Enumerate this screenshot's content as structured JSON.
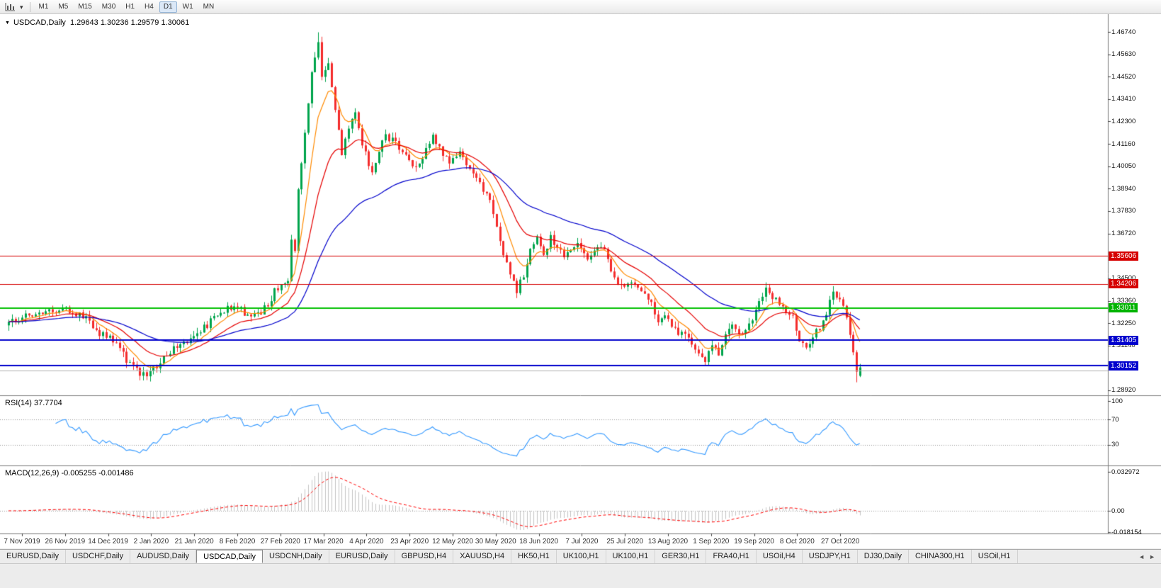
{
  "toolbar": {
    "timeframes": [
      {
        "label": "M1",
        "active": false
      },
      {
        "label": "M5",
        "active": false
      },
      {
        "label": "M15",
        "active": false
      },
      {
        "label": "M30",
        "active": false
      },
      {
        "label": "H1",
        "active": false
      },
      {
        "label": "H4",
        "active": false
      },
      {
        "label": "D1",
        "active": true
      },
      {
        "label": "W1",
        "active": false
      },
      {
        "label": "MN",
        "active": false
      }
    ]
  },
  "chart": {
    "title": "USDCAD,Daily  1.29643 1.30236 1.29579 1.30061",
    "symbol": "USDCAD",
    "timeframe": "Daily",
    "rsi_label": "RSI(14) 37.7704",
    "macd_label": "MACD(12,26,9) -0.005255 -0.001486"
  },
  "price_axis": {
    "ticks": [
      "1.46740",
      "1.45630",
      "1.44520",
      "1.43410",
      "1.42300",
      "1.41160",
      "1.40050",
      "1.38940",
      "1.37830",
      "1.36720",
      "1.34500",
      "1.33360",
      "1.32250",
      "1.31140",
      "1.28920"
    ],
    "badges": [
      {
        "value": "1.35606",
        "color": "#d60000"
      },
      {
        "value": "1.34206",
        "color": "#d60000"
      },
      {
        "value": "1.33011",
        "color": "#00b300"
      },
      {
        "value": "1.31405",
        "color": "#0000cd"
      },
      {
        "value": "1.30152",
        "color": "#0000cd"
      }
    ]
  },
  "rsi_axis": [
    "100",
    "70",
    "30"
  ],
  "macd_axis": [
    "0.032972",
    "0.00",
    "-0.018154"
  ],
  "date_axis": [
    "7 Nov 2019",
    "26 Nov 2019",
    "14 Dec 2019",
    "2 Jan 2020",
    "21 Jan 2020",
    "8 Feb 2020",
    "27 Feb 2020",
    "17 Mar 2020",
    "4 Apr 2020",
    "23 Apr 2020",
    "12 May 2020",
    "30 May 2020",
    "18 Jun 2020",
    "7 Jul 2020",
    "25 Jul 2020",
    "13 Aug 2020",
    "1 Sep 2020",
    "19 Sep 2020",
    "8 Oct 2020",
    "27 Oct 2020"
  ],
  "tabs": {
    "scroll_left": "◄",
    "scroll_right": "►",
    "items": [
      {
        "label": "EURUSD,Daily",
        "active": false
      },
      {
        "label": "USDCHF,Daily",
        "active": false
      },
      {
        "label": "AUDUSD,Daily",
        "active": false
      },
      {
        "label": "USDCAD,Daily",
        "active": true
      },
      {
        "label": "USDCNH,Daily",
        "active": false
      },
      {
        "label": "EURUSD,Daily",
        "active": false
      },
      {
        "label": "GBPUSD,H4",
        "active": false
      },
      {
        "label": "XAUUSD,H4",
        "active": false
      },
      {
        "label": "HK50,H1",
        "active": false
      },
      {
        "label": "UK100,H1",
        "active": false
      },
      {
        "label": "UK100,H1",
        "active": false
      },
      {
        "label": "GER30,H1",
        "active": false
      },
      {
        "label": "FRA40,H1",
        "active": false
      },
      {
        "label": "USOil,H4",
        "active": false
      },
      {
        "label": "USDJPY,H1",
        "active": false
      },
      {
        "label": "DJ30,Daily",
        "active": false
      },
      {
        "label": "CHINA300,H1",
        "active": false
      },
      {
        "label": "USOil,H1",
        "active": false
      }
    ]
  },
  "chart_data": {
    "type": "candlestick",
    "symbol": "USDCAD",
    "timeframe": "Daily",
    "last_bar": {
      "open": 1.29643,
      "high": 1.30236,
      "low": 1.29579,
      "close": 1.30061
    },
    "bars": 254,
    "price_anchors": [
      [
        0,
        1.3225
      ],
      [
        4,
        1.3255
      ],
      [
        8,
        1.3268
      ],
      [
        13,
        1.3292
      ],
      [
        17,
        1.33
      ],
      [
        21,
        1.327
      ],
      [
        24,
        1.324
      ],
      [
        26,
        1.3175
      ],
      [
        29,
        1.3168
      ],
      [
        32,
        1.312
      ],
      [
        35,
        1.3042
      ],
      [
        38,
        1.2988
      ],
      [
        41,
        1.2962
      ],
      [
        44,
        1.3015
      ],
      [
        47,
        1.3068
      ],
      [
        50,
        1.3108
      ],
      [
        53,
        1.3138
      ],
      [
        57,
        1.3185
      ],
      [
        61,
        1.3248
      ],
      [
        65,
        1.3298
      ],
      [
        68,
        1.3302
      ],
      [
        71,
        1.3262
      ],
      [
        74,
        1.327
      ],
      [
        77,
        1.3315
      ],
      [
        79,
        1.3382
      ],
      [
        81,
        1.3428
      ],
      [
        83,
        1.3445
      ],
      [
        84,
        1.363
      ],
      [
        85,
        1.3575
      ],
      [
        86,
        1.389
      ],
      [
        88,
        1.418
      ],
      [
        90,
        1.447
      ],
      [
        92,
        1.4625
      ],
      [
        93,
        1.444
      ],
      [
        95,
        1.4505
      ],
      [
        97,
        1.427
      ],
      [
        99,
        1.4075
      ],
      [
        101,
        1.418
      ],
      [
        103,
        1.427
      ],
      [
        105,
        1.4105
      ],
      [
        108,
        1.3985
      ],
      [
        110,
        1.4085
      ],
      [
        112,
        1.416
      ],
      [
        115,
        1.4115
      ],
      [
        118,
        1.4058
      ],
      [
        121,
        1.3992
      ],
      [
        124,
        1.4088
      ],
      [
        126,
        1.4165
      ],
      [
        128,
        1.4098
      ],
      [
        131,
        1.4022
      ],
      [
        134,
        1.4092
      ],
      [
        137,
        1.3985
      ],
      [
        140,
        1.3918
      ],
      [
        143,
        1.3838
      ],
      [
        146,
        1.3618
      ],
      [
        149,
        1.3478
      ],
      [
        151,
        1.3392
      ],
      [
        153,
        1.3462
      ],
      [
        155,
        1.3578
      ],
      [
        157,
        1.3642
      ],
      [
        159,
        1.3558
      ],
      [
        161,
        1.3648
      ],
      [
        163,
        1.3598
      ],
      [
        165,
        1.3568
      ],
      [
        167,
        1.3592
      ],
      [
        169,
        1.3618
      ],
      [
        171,
        1.3572
      ],
      [
        173,
        1.3548
      ],
      [
        175,
        1.3608
      ],
      [
        177,
        1.3578
      ],
      [
        179,
        1.3498
      ],
      [
        181,
        1.3422
      ],
      [
        183,
        1.3398
      ],
      [
        185,
        1.3428
      ],
      [
        187,
        1.3392
      ],
      [
        189,
        1.3368
      ],
      [
        191,
        1.3338
      ],
      [
        193,
        1.3228
      ],
      [
        195,
        1.3262
      ],
      [
        197,
        1.3202
      ],
      [
        199,
        1.3182
      ],
      [
        201,
        1.3158
      ],
      [
        203,
        1.3128
      ],
      [
        205,
        1.3078
      ],
      [
        207,
        1.3032
      ],
      [
        209,
        1.3118
      ],
      [
        211,
        1.3062
      ],
      [
        213,
        1.3158
      ],
      [
        215,
        1.3202
      ],
      [
        217,
        1.3162
      ],
      [
        219,
        1.3188
      ],
      [
        221,
        1.3248
      ],
      [
        223,
        1.3338
      ],
      [
        225,
        1.3388
      ],
      [
        227,
        1.3352
      ],
      [
        229,
        1.3328
      ],
      [
        231,
        1.3288
      ],
      [
        233,
        1.3252
      ],
      [
        235,
        1.3148
      ],
      [
        237,
        1.3122
      ],
      [
        239,
        1.3152
      ],
      [
        241,
        1.3208
      ],
      [
        243,
        1.3278
      ],
      [
        245,
        1.3378
      ],
      [
        247,
        1.3358
      ],
      [
        249,
        1.3248
      ],
      [
        250,
        1.3178
      ],
      [
        251,
        1.3078
      ],
      [
        252,
        1.2998
      ],
      [
        253,
        1.30061
      ]
    ],
    "hlines": [
      {
        "price": 1.35606,
        "color": "#d60000",
        "width": 1
      },
      {
        "price": 1.34206,
        "color": "#d60000",
        "width": 1
      },
      {
        "price": 1.33011,
        "color": "#00c000",
        "width": 2
      },
      {
        "price": 1.31405,
        "color": "#0000cd",
        "width": 2
      },
      {
        "price": 1.30152,
        "color": "#0000cd",
        "width": 2
      },
      {
        "price": 1.299,
        "color": "#b4b4b4",
        "width": 1
      }
    ],
    "candle_up_color": "#00a44c",
    "candle_down_color": "#f42c2c",
    "moving_averages": [
      {
        "type": "ema",
        "period": 8,
        "color": "#ff8a00"
      },
      {
        "type": "ema",
        "period": 20,
        "color": "#e60000"
      },
      {
        "type": "ema",
        "period": 50,
        "color": "#0000cc"
      }
    ],
    "rsi": {
      "period": 14,
      "current": 37.7704,
      "levels": [
        70,
        30
      ],
      "range": [
        0,
        100
      ],
      "color": "#3399ff"
    },
    "macd": {
      "fast": 12,
      "slow": 26,
      "signal": 9,
      "macd_value": -0.005255,
      "signal_value": -0.001486,
      "axis_max": 0.032972,
      "axis_min": -0.018154,
      "histogram_color": "#c4c4c4",
      "signal_color": "#ff0000"
    }
  }
}
